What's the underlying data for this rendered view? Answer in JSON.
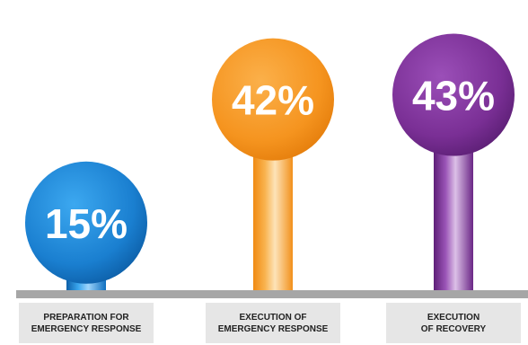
{
  "chart_data": {
    "type": "bar",
    "categories": [
      [
        "PREPARATION FOR",
        "EMERGENCY RESPONSE"
      ],
      [
        "EXECUTION OF",
        "EMERGENCY RESPONSE"
      ],
      [
        "EXECUTION",
        "OF RECOVERY"
      ]
    ],
    "values": [
      15,
      42,
      43
    ],
    "value_labels": [
      "15%",
      "42%",
      "43%"
    ],
    "colors": [
      "#1a7fd0",
      "#f5941f",
      "#7a2f95"
    ],
    "ylim": [
      0,
      50
    ],
    "grid": false,
    "legend": "none"
  }
}
